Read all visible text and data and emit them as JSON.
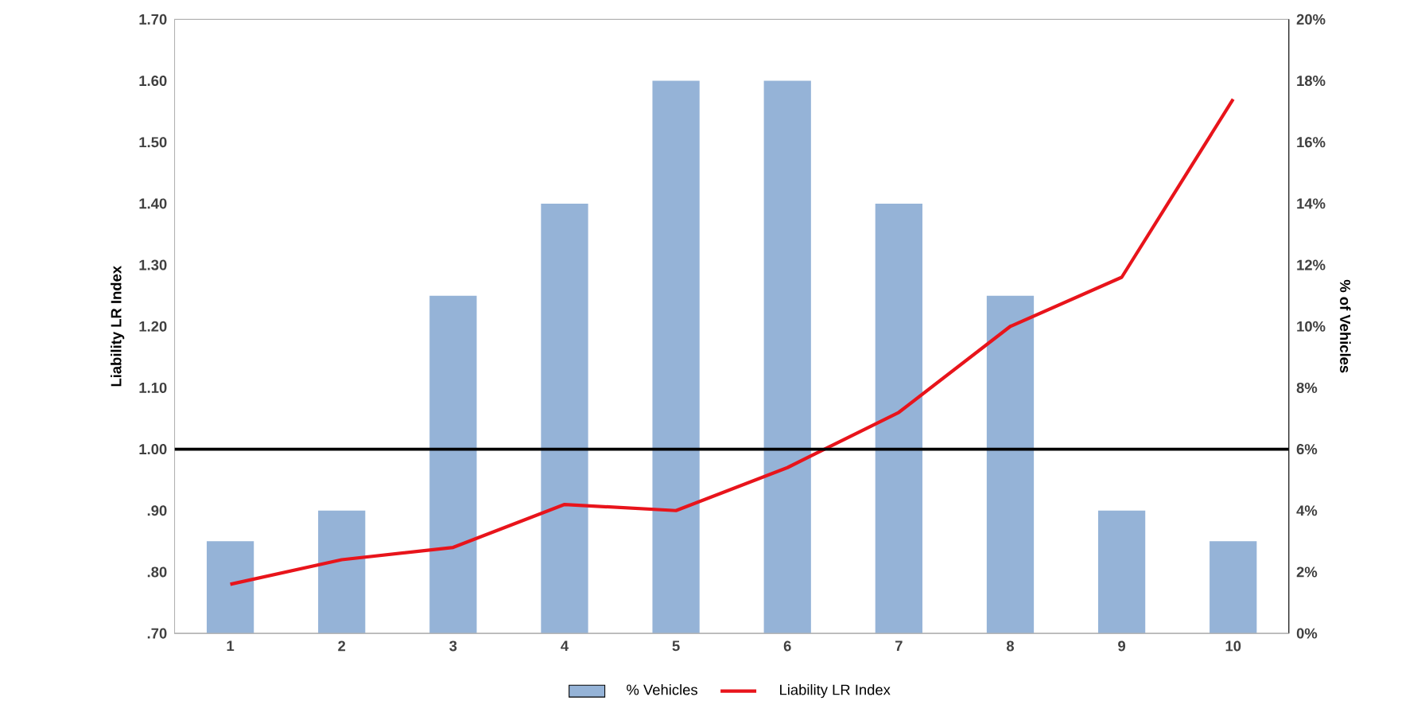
{
  "chart_data": {
    "type": "bar",
    "ylabel": "Liability LR Index",
    "y2label": "% of Vehicles",
    "categories": [
      "1",
      "2",
      "3",
      "4",
      "5",
      "6",
      "7",
      "8",
      "9",
      "10"
    ],
    "series": [
      {
        "name": "% Vehicles",
        "axis": "y2",
        "color": "#95b3d7",
        "values": [
          3,
          4,
          11,
          14,
          18,
          18,
          14,
          11,
          4,
          3
        ]
      },
      {
        "name": "Liability LR Index",
        "type": "line",
        "axis": "y",
        "color": "#e8141b",
        "values": [
          0.78,
          0.82,
          0.84,
          0.91,
          0.9,
          0.97,
          1.06,
          1.2,
          1.28,
          1.57
        ]
      }
    ],
    "ylim": [
      0.7,
      1.7
    ],
    "yticks": [
      {
        "value": 0.7,
        "label": ".70"
      },
      {
        "value": 0.8,
        "label": ".80"
      },
      {
        "value": 0.9,
        "label": ".90"
      },
      {
        "value": 1.0,
        "label": "1.00"
      },
      {
        "value": 1.1,
        "label": "1.10"
      },
      {
        "value": 1.2,
        "label": "1.20"
      },
      {
        "value": 1.3,
        "label": "1.30"
      },
      {
        "value": 1.4,
        "label": "1.40"
      },
      {
        "value": 1.5,
        "label": "1.50"
      },
      {
        "value": 1.6,
        "label": "1.60"
      },
      {
        "value": 1.7,
        "label": "1.70"
      }
    ],
    "y2lim": [
      0,
      20
    ],
    "y2ticks": [
      {
        "value": 0,
        "label": "0%"
      },
      {
        "value": 2,
        "label": "2%"
      },
      {
        "value": 4,
        "label": "4%"
      },
      {
        "value": 6,
        "label": "6%"
      },
      {
        "value": 8,
        "label": "8%"
      },
      {
        "value": 10,
        "label": "10%"
      },
      {
        "value": 12,
        "label": "12%"
      },
      {
        "value": 14,
        "label": "14%"
      },
      {
        "value": 16,
        "label": "16%"
      },
      {
        "value": 18,
        "label": "18%"
      },
      {
        "value": 20,
        "label": "20%"
      }
    ],
    "ref_lines": [
      {
        "axis": "y",
        "value": 1.0,
        "color": "#000000"
      }
    ],
    "legend": "bottom"
  }
}
